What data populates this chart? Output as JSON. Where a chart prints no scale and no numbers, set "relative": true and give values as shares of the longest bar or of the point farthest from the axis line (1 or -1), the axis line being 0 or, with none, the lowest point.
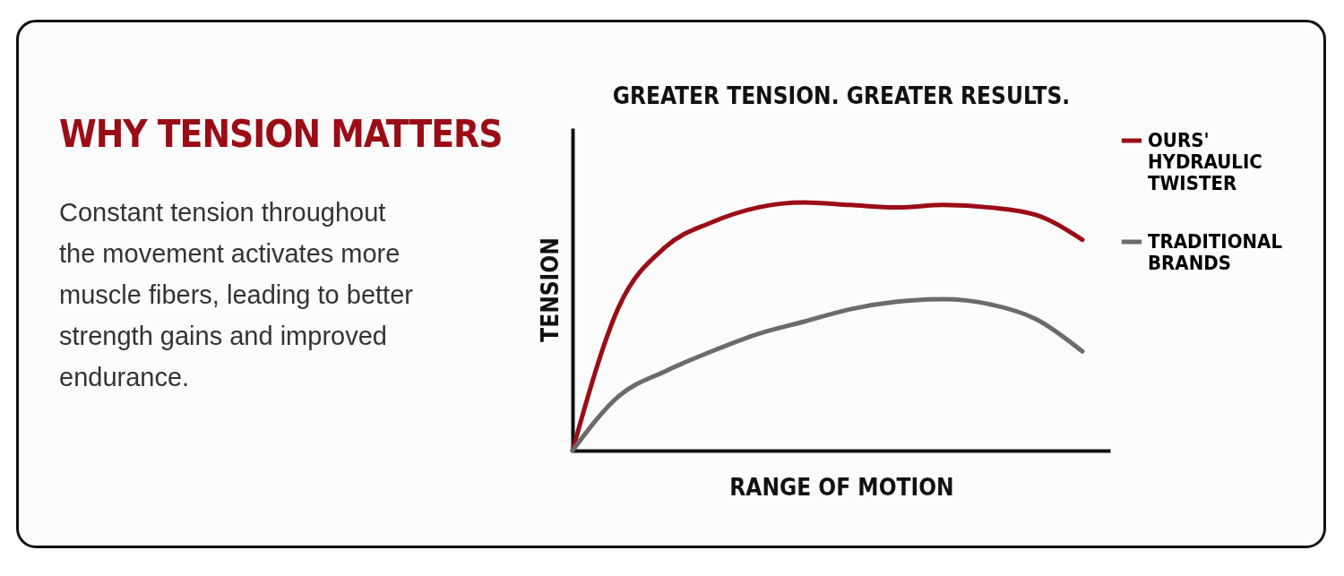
{
  "chart_data": {
    "type": "line",
    "title": "GREATER TENSION. GREATER RESULTS.",
    "xlabel": "RANGE OF MOTION",
    "ylabel": "TENSION",
    "annotations": [
      "WHY TENSION MATTERS",
      "Constant tension throughout the movement activates more muscle fibers, leading to better strength gains and improved endurance."
    ],
    "categories": [
      null,
      null,
      null,
      null,
      null,
      null,
      null,
      null,
      null,
      null,
      null,
      null
    ],
    "relative": true,
    "legend": "right",
    "series": [
      {
        "name": "OURS' HYDRAULIC TWISTER",
        "color": "#9b0d16",
        "values": [
          0,
          0.58,
          0.82,
          0.92,
          0.98,
          1.0,
          0.99,
          0.98,
          0.99,
          0.98,
          0.95,
          0.85
        ]
      },
      {
        "name": "TRADITIONAL BRANDS",
        "color": "#6b6b6b",
        "values": [
          0,
          0.22,
          0.32,
          0.4,
          0.47,
          0.52,
          0.57,
          0.6,
          0.61,
          0.59,
          0.53,
          0.4
        ]
      }
    ]
  }
}
